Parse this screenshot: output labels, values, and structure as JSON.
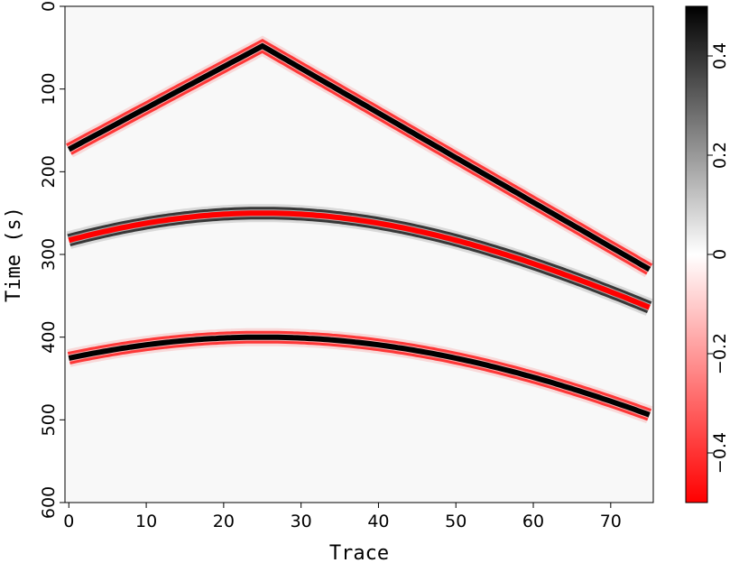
{
  "chart_data": {
    "type": "heatmap",
    "title": "",
    "xlabel": "Trace",
    "ylabel": "Time (s)",
    "xlim": [
      -0.5,
      75.5
    ],
    "ylim": [
      600,
      0
    ],
    "x_ticks": [
      0,
      10,
      20,
      30,
      40,
      50,
      60,
      70
    ],
    "y_ticks": [
      0,
      100,
      200,
      300,
      400,
      500,
      600
    ],
    "grid": false,
    "y_axis_inverted": true,
    "colormap": {
      "negative_color": "#ff0000",
      "zero_color": "#ffffff",
      "positive_color": "#000000",
      "background": "#f8f8f8"
    },
    "colorbar": {
      "range": [
        -0.5,
        0.5
      ],
      "ticks": [
        -0.4,
        -0.2,
        0,
        0.2,
        0.4
      ],
      "tick_labels": [
        "−0.4",
        "−0.2",
        "0",
        "0.2",
        "0.4"
      ]
    },
    "events": [
      {
        "shape": "linear",
        "apex_trace": 25,
        "apex_time": 48,
        "slope_left": 5,
        "slope_right": 5.4,
        "x_range": [
          0,
          75
        ],
        "polarity": "black-center"
      },
      {
        "shape": "hyperbolic",
        "apex_trace": 25,
        "apex_time": 250,
        "curvature": 0.028,
        "x_range": [
          0,
          75
        ],
        "polarity": "red-center"
      },
      {
        "shape": "hyperbolic",
        "apex_trace": 25,
        "apex_time": 400,
        "curvature": 0.021,
        "x_range": [
          0,
          75
        ],
        "polarity": "black-center"
      }
    ]
  }
}
